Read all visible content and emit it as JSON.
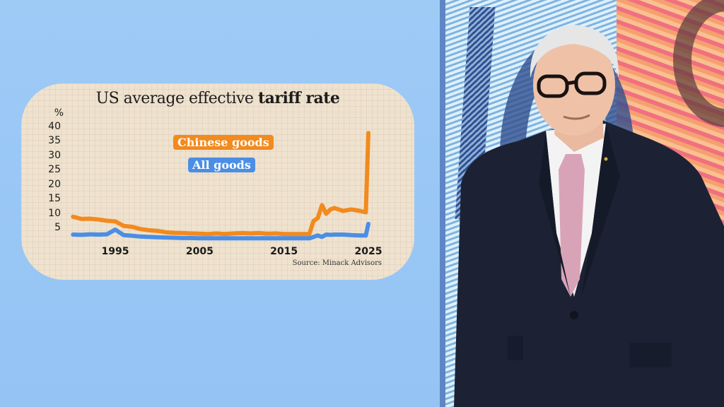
{
  "chart_data": {
    "type": "line",
    "title": "US average effective tariff rate",
    "title_regular": "US average effective ",
    "title_bold": "tariff rate",
    "ylabel": "%",
    "xlabel": "",
    "yticks": [
      "40",
      "35",
      "30",
      "25",
      "20",
      "15",
      "10",
      "5"
    ],
    "xticks": [
      "1995",
      "2005",
      "2015",
      "2025"
    ],
    "ylim": [
      0,
      40
    ],
    "xlim": [
      1990,
      2025
    ],
    "grid": true,
    "legend_position": "top-center",
    "source": "Source: Minack Advisors",
    "x": [
      1990,
      1991,
      1992,
      1993,
      1994,
      1995,
      1996,
      1997,
      1998,
      1999,
      2000,
      2001,
      2002,
      2003,
      2004,
      2005,
      2006,
      2007,
      2008,
      2009,
      2010,
      2011,
      2012,
      2013,
      2014,
      2015,
      2016,
      2017,
      2018,
      2018.5,
      2019,
      2019.5,
      2020,
      2020.5,
      2021,
      2022,
      2023,
      2024,
      2024.7,
      2025
    ],
    "series": [
      {
        "name": "Chinese goods",
        "color": "#f28a1e",
        "values": [
          9,
          8.2,
          8.3,
          8,
          7.6,
          7.4,
          5.8,
          5.5,
          4.7,
          4.3,
          4.1,
          3.6,
          3.4,
          3.3,
          3.2,
          3.1,
          3.0,
          3.2,
          3.0,
          3.2,
          3.3,
          3.2,
          3.3,
          3.1,
          3.2,
          3.0,
          3.0,
          3.0,
          3.0,
          7.5,
          8.5,
          13,
          10,
          11.5,
          12,
          11,
          11.5,
          11,
          10.5,
          38
        ]
      },
      {
        "name": "All goods",
        "color": "#4a8ee6",
        "values": [
          2.8,
          2.7,
          2.9,
          2.8,
          2.9,
          4.5,
          2.6,
          2.4,
          2.1,
          2.0,
          1.9,
          1.8,
          1.7,
          1.6,
          1.6,
          1.5,
          1.5,
          1.5,
          1.5,
          1.5,
          1.5,
          1.5,
          1.5,
          1.5,
          1.5,
          1.5,
          1.5,
          1.5,
          1.5,
          2.0,
          2.5,
          2.0,
          2.8,
          2.7,
          2.8,
          2.8,
          2.6,
          2.5,
          2.5,
          6.5
        ]
      }
    ]
  },
  "legend": {
    "chinese": "Chinese goods",
    "all": "All goods"
  },
  "scene": {
    "panel_color": "#9cc8f4",
    "card_color": "#efe2ce",
    "presenter": "News presenter in dark suit, white shirt, pink floral tie, dark-rimmed glasses, standing before a video wall showing banknote artwork"
  }
}
